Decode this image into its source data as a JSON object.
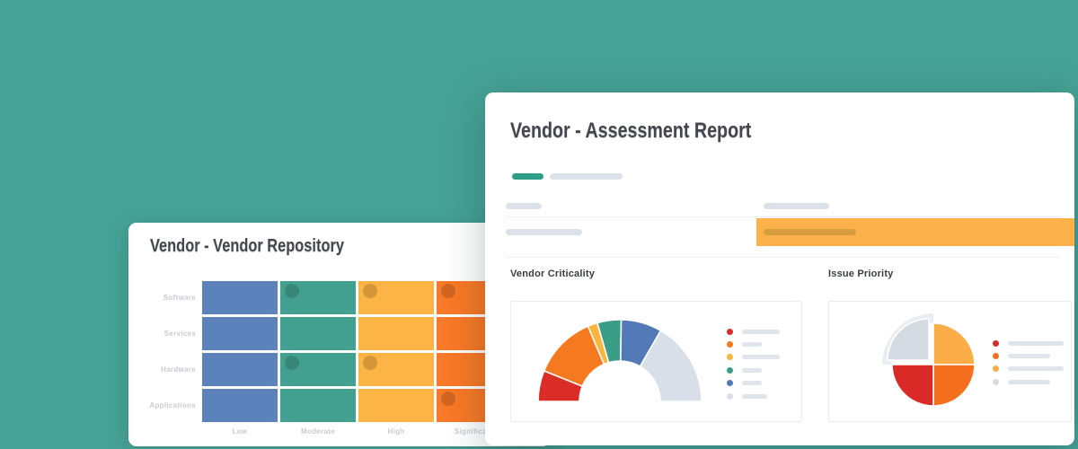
{
  "page": {
    "background_color": "#47A296"
  },
  "repository_card": {
    "title": "Vendor - Vendor Repository",
    "matrix": {
      "row_labels": [
        "Software",
        "Services",
        "Hardware",
        "Applications"
      ],
      "col_labels": [
        "Low",
        "Moderate",
        "High",
        "Significant"
      ],
      "col_colors": [
        "#5B82BA",
        "#43A090",
        "#FCB444",
        "#F87927"
      ],
      "dot_color": "rgba(0,0,0,0.16)",
      "dots": [
        [
          0,
          1
        ],
        [
          0,
          2
        ],
        [
          0,
          3
        ],
        [
          2,
          1
        ],
        [
          2,
          2
        ],
        [
          3,
          3
        ]
      ]
    }
  },
  "assessment_card": {
    "title": "Vendor - Assessment Report",
    "accent_pill_color": "#2E9E88",
    "highlight_row_color": "#FCB14B",
    "highlight_pill_color": "#D79C3E"
  },
  "chart_data": [
    {
      "type": "gauge",
      "title": "Vendor Criticality",
      "shape": "half-donut",
      "total_degrees": 180,
      "segments": [
        {
          "color": "#DA2D27",
          "degrees": 22
        },
        {
          "color": "#F5791F",
          "degrees": 45
        },
        {
          "color": "#FBB43C",
          "degrees": 7
        },
        {
          "color": "#3A9D86",
          "degrees": 17
        },
        {
          "color": "#5379B7",
          "degrees": 29
        },
        {
          "color": "#D8DFE8",
          "degrees": 60
        }
      ],
      "legend_position": "right",
      "legend": [
        {
          "color": "#DA2D27",
          "line_w": 42
        },
        {
          "color": "#F5791F",
          "line_w": 22
        },
        {
          "color": "#FBB43C",
          "line_w": 42
        },
        {
          "color": "#3A9D86",
          "line_w": 22
        },
        {
          "color": "#5379B7",
          "line_w": 22
        },
        {
          "color": "#D8DFE8",
          "line_w": 28
        }
      ]
    },
    {
      "type": "pie",
      "title": "Issue Priority",
      "slices": [
        {
          "color": "#FBAD47",
          "percent": 25,
          "exploded": false
        },
        {
          "color": "#F5701E",
          "percent": 25,
          "exploded": false
        },
        {
          "color": "#DA2A28",
          "percent": 25,
          "exploded": false
        },
        {
          "color": "#D4DBE3",
          "percent": 25,
          "exploded": true
        }
      ],
      "halo_color": "#E9EEF2",
      "legend_position": "right",
      "legend": [
        {
          "color": "#DA2A28",
          "line_w": 62
        },
        {
          "color": "#F5701E",
          "line_w": 47
        },
        {
          "color": "#FBAD47",
          "line_w": 62
        },
        {
          "color": "#D4DBE3",
          "line_w": 47
        }
      ]
    }
  ]
}
